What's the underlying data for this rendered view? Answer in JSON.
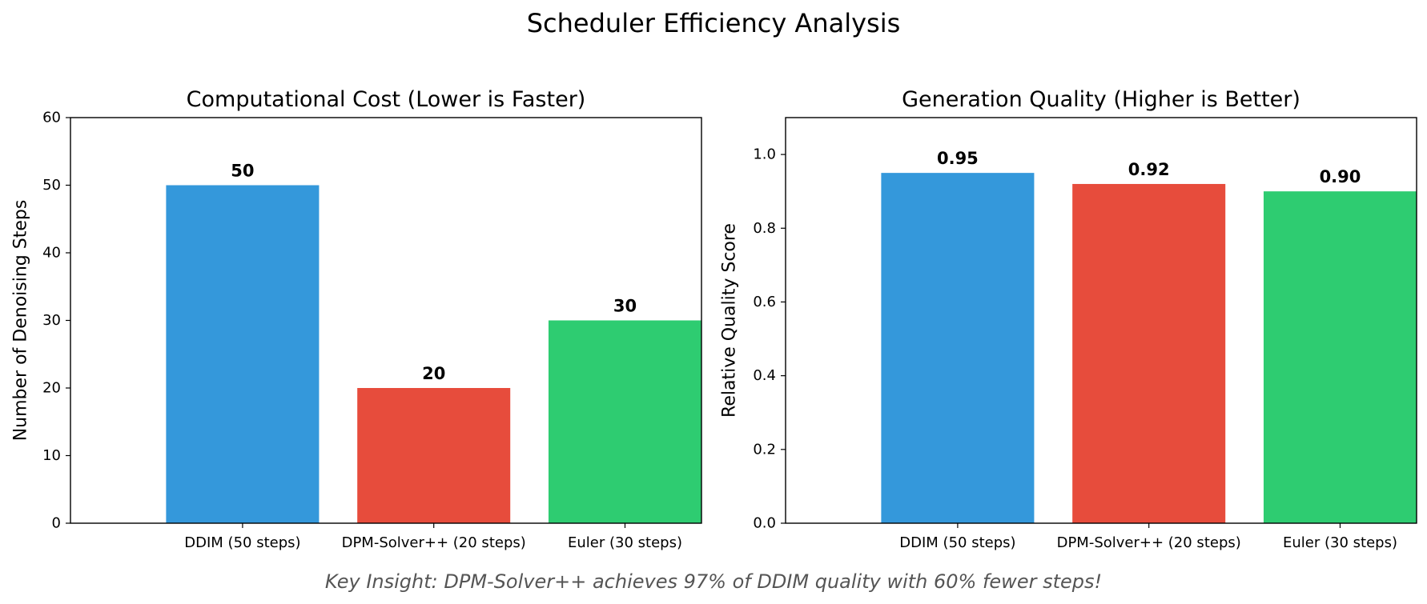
{
  "figure": {
    "suptitle": "Scheduler Efficiency Analysis",
    "footnote": "Key Insight: DPM-Solver++ achieves 97% of DDIM quality with 60% fewer steps!"
  },
  "colors": {
    "ddim": "#3498db",
    "dpm": "#e74c3c",
    "euler": "#2ecc71",
    "footnote": "#555555"
  },
  "chart_data": [
    {
      "type": "bar",
      "title": "Computational Cost (Lower is Faster)",
      "xlabel": "",
      "ylabel": "Number of Denoising Steps",
      "categories": [
        "DDIM (50 steps)",
        "DPM-Solver++ (20 steps)",
        "Euler (30 steps)"
      ],
      "values": [
        50,
        20,
        30
      ],
      "value_labels": [
        "50",
        "20",
        "30"
      ],
      "ylim": [
        0,
        60
      ],
      "yticks": [
        0,
        10,
        20,
        30,
        40,
        50,
        60
      ],
      "ytick_labels": [
        "0",
        "10",
        "20",
        "30",
        "40",
        "50",
        "60"
      ],
      "bar_colors": [
        "#3498db",
        "#e74c3c",
        "#2ecc71"
      ],
      "grid": false
    },
    {
      "type": "bar",
      "title": "Generation Quality (Higher is Better)",
      "xlabel": "",
      "ylabel": "Relative Quality Score",
      "categories": [
        "DDIM (50 steps)",
        "DPM-Solver++ (20 steps)",
        "Euler (30 steps)"
      ],
      "values": [
        0.95,
        0.92,
        0.9
      ],
      "value_labels": [
        "0.95",
        "0.92",
        "0.90"
      ],
      "ylim": [
        0,
        1.1
      ],
      "yticks": [
        0,
        0.2,
        0.4,
        0.6,
        0.8,
        1.0
      ],
      "ytick_labels": [
        "0.0",
        "0.2",
        "0.4",
        "0.6",
        "0.8",
        "1.0"
      ],
      "bar_colors": [
        "#3498db",
        "#e74c3c",
        "#2ecc71"
      ],
      "grid": false
    }
  ]
}
